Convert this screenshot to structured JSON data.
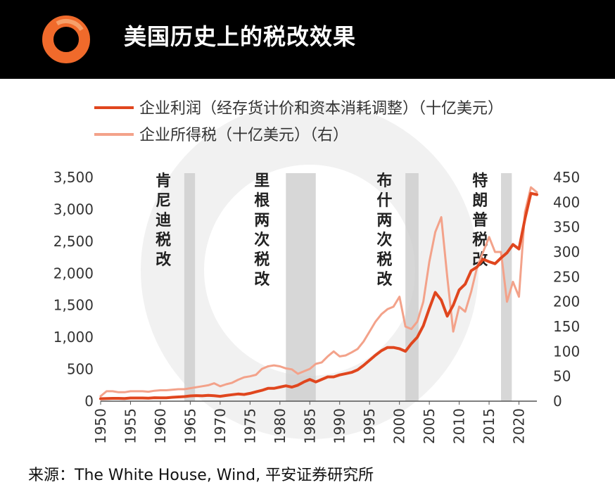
{
  "header": {
    "title": "美国历史上的税改效果",
    "accent": "#f06a2b"
  },
  "legend": [
    "企业利润（经存货计价和资本消耗调整）（十亿美元）",
    "企业所得税（十亿美元）（右）"
  ],
  "source": "来源：The White House, Wind, 平安证券研究所",
  "chart_data": {
    "type": "line",
    "x": [
      1950,
      1951,
      1952,
      1953,
      1954,
      1955,
      1956,
      1957,
      1958,
      1959,
      1960,
      1961,
      1962,
      1963,
      1964,
      1965,
      1966,
      1967,
      1968,
      1969,
      1970,
      1971,
      1972,
      1973,
      1974,
      1975,
      1976,
      1977,
      1978,
      1979,
      1980,
      1981,
      1982,
      1983,
      1984,
      1985,
      1986,
      1987,
      1988,
      1989,
      1990,
      1991,
      1992,
      1993,
      1994,
      1995,
      1996,
      1997,
      1998,
      1999,
      2000,
      2001,
      2002,
      2003,
      2004,
      2005,
      2006,
      2007,
      2008,
      2009,
      2010,
      2011,
      2012,
      2013,
      2014,
      2015,
      2016,
      2017,
      2018,
      2019,
      2020,
      2021,
      2022,
      2023
    ],
    "series": [
      {
        "name": "企业利润（经存货计价和资本消耗调整）（十亿美元）",
        "axis": "left",
        "color": "#e0461e",
        "values": [
          38,
          42,
          44,
          44,
          42,
          50,
          50,
          49,
          46,
          54,
          53,
          53,
          60,
          66,
          72,
          82,
          87,
          84,
          90,
          86,
          76,
          89,
          101,
          112,
          105,
          122,
          146,
          170,
          200,
          200,
          220,
          240,
          220,
          250,
          300,
          340,
          300,
          340,
          380,
          380,
          410,
          430,
          450,
          490,
          560,
          640,
          720,
          790,
          840,
          840,
          820,
          780,
          900,
          1000,
          1180,
          1450,
          1700,
          1580,
          1330,
          1500,
          1740,
          1830,
          2040,
          2100,
          2220,
          2180,
          2150,
          2240,
          2320,
          2450,
          2380,
          2850,
          3250,
          3230
        ]
      },
      {
        "name": "企业所得税（十亿美元）（右）",
        "axis": "right",
        "color": "#f3a28a",
        "values": [
          10,
          20,
          20,
          18,
          18,
          20,
          20,
          20,
          19,
          21,
          22,
          22,
          23,
          24,
          24,
          26,
          28,
          30,
          32,
          36,
          30,
          34,
          37,
          43,
          48,
          50,
          53,
          65,
          70,
          72,
          70,
          66,
          64,
          55,
          60,
          65,
          75,
          78,
          90,
          100,
          90,
          92,
          98,
          105,
          120,
          140,
          160,
          175,
          185,
          190,
          210,
          150,
          145,
          160,
          200,
          280,
          340,
          370,
          250,
          140,
          190,
          180,
          220,
          270,
          300,
          330,
          300,
          300,
          200,
          240,
          210,
          380,
          430,
          420
        ]
      }
    ],
    "y_left": {
      "ticks": [
        "0",
        "500",
        "1,000",
        "1,500",
        "2,000",
        "2,500",
        "3,000",
        "3,500"
      ],
      "range": [
        0,
        3500
      ]
    },
    "y_right": {
      "ticks": [
        "0",
        "50",
        "100",
        "150",
        "200",
        "250",
        "300",
        "350",
        "400",
        "450"
      ],
      "range": [
        0,
        450
      ]
    },
    "x_ticks": [
      "1950",
      "1955",
      "1960",
      "1965",
      "1970",
      "1975",
      "1980",
      "1985",
      "1990",
      "1995",
      "2000",
      "2005",
      "2010",
      "2015",
      "2020"
    ],
    "x_range": [
      1950,
      2023
    ],
    "shaded_periods": [
      {
        "start": 1964,
        "end": 1965.8
      },
      {
        "start": 1981,
        "end": 1986
      },
      {
        "start": 2001,
        "end": 2003.2
      },
      {
        "start": 2017,
        "end": 2018.8
      }
    ],
    "annotations": [
      {
        "text": "肯尼迪税改",
        "x": 1960.5
      },
      {
        "text": "里根两次税改",
        "x": 1977
      },
      {
        "text": "布什两次税改",
        "x": 1997.5
      },
      {
        "text": "特朗普税改",
        "x": 2013.5
      }
    ],
    "grid": false,
    "legend_position": "top"
  }
}
